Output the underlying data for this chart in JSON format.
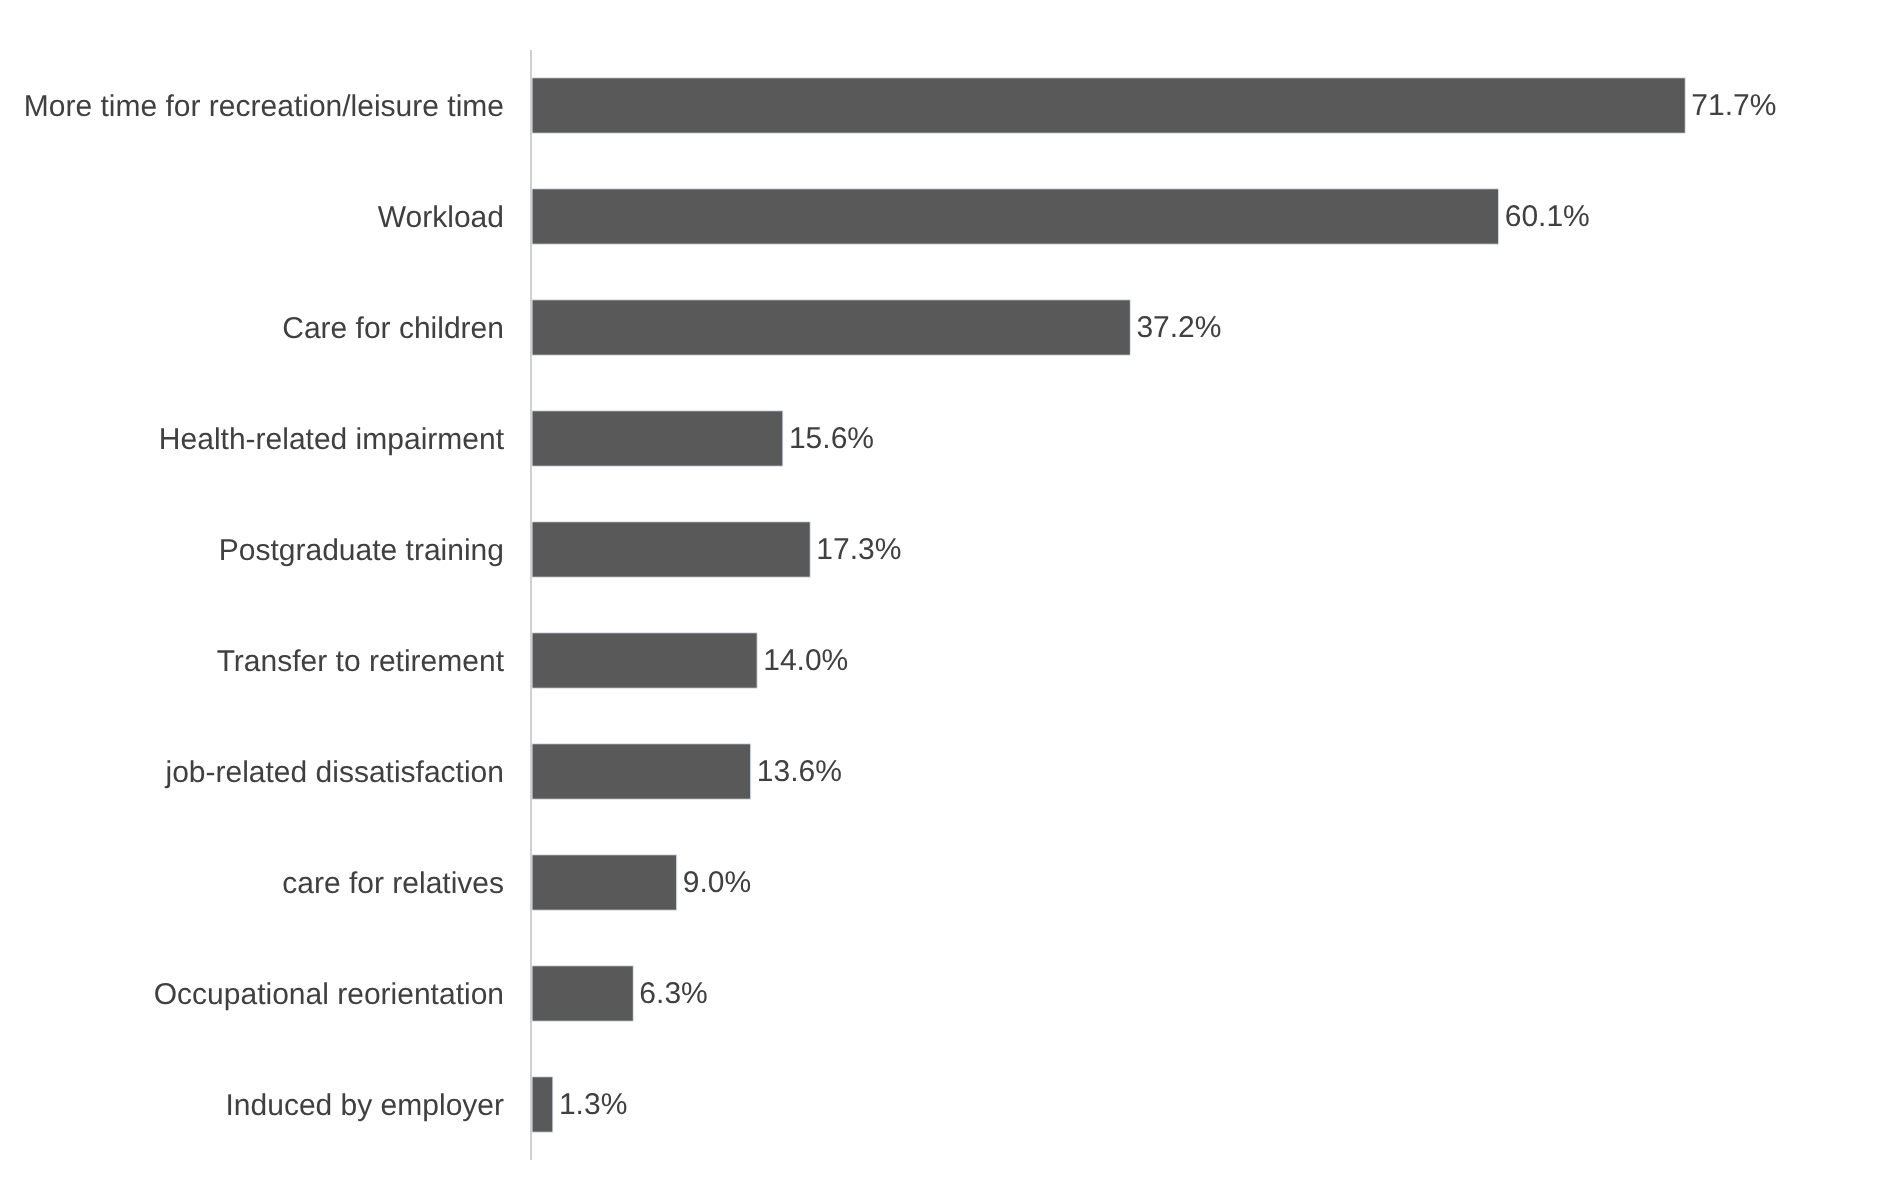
{
  "chart_data": {
    "type": "bar",
    "orientation": "horizontal",
    "categories": [
      "More time for recreation/leisure time",
      "Workload",
      "Care for children",
      "Health-related impairment",
      "Postgraduate training",
      "Transfer to retirement",
      "job-related dissatisfaction",
      "care for relatives",
      "Occupational reorientation",
      "Induced by employer"
    ],
    "values": [
      71.7,
      60.1,
      37.2,
      15.6,
      17.3,
      14.0,
      13.6,
      9.0,
      6.3,
      1.3
    ],
    "value_labels": [
      "71.7%",
      "60.1%",
      "37.2%",
      "15.6%",
      "17.3%",
      "14.0%",
      "13.6%",
      "9.0%",
      "6.3%",
      "1.3%"
    ],
    "color": "#595959",
    "legend": false
  }
}
